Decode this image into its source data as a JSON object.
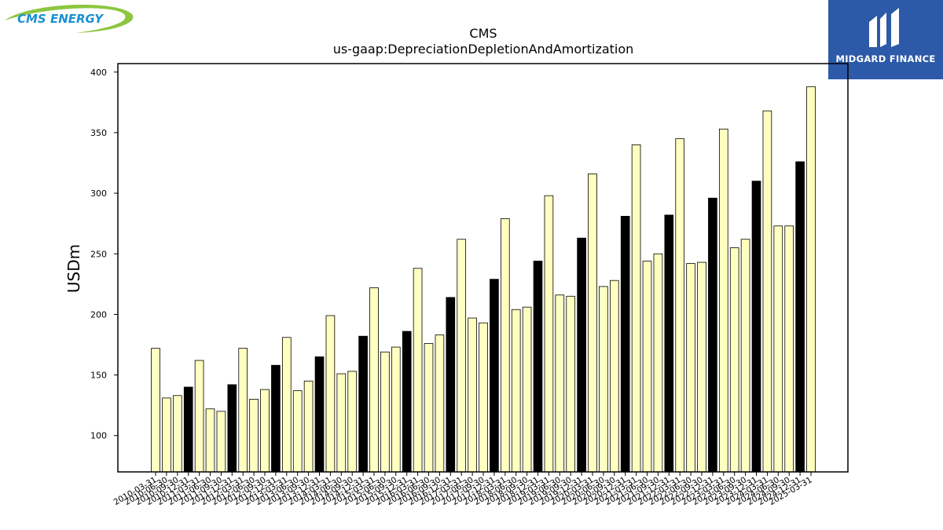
{
  "logos": {
    "left_text": "CMS ENERGY",
    "right_text": "MIDGARD FINANCE"
  },
  "chart_data": {
    "type": "bar",
    "title": "CMS",
    "subtitle": "us-gaap:DepreciationDepletionAndAmortization",
    "ylabel": "USDm",
    "xlabel": "",
    "ylim": [
      70,
      407
    ],
    "yticks": [
      100,
      150,
      200,
      250,
      300,
      350,
      400
    ],
    "grid": false,
    "categories": [
      "2010-03-31",
      "2010-06-30",
      "2010-09-30",
      "2010-12-31",
      "2011-03-31",
      "2011-06-30",
      "2011-09-30",
      "2011-12-31",
      "2012-03-31",
      "2012-06-30",
      "2012-09-30",
      "2012-12-31",
      "2013-03-31",
      "2013-06-30",
      "2013-09-30",
      "2013-12-31",
      "2014-03-31",
      "2014-06-30",
      "2014-09-30",
      "2014-12-31",
      "2015-03-31",
      "2015-06-30",
      "2015-09-30",
      "2015-12-31",
      "2016-03-31",
      "2016-06-30",
      "2016-09-30",
      "2016-12-31",
      "2017-03-31",
      "2017-06-30",
      "2017-09-30",
      "2017-12-31",
      "2018-03-31",
      "2018-06-30",
      "2018-09-30",
      "2018-12-31",
      "2019-03-31",
      "2019-06-30",
      "2019-09-30",
      "2019-12-31",
      "2020-03-31",
      "2020-06-30",
      "2020-09-30",
      "2020-12-31",
      "2021-03-31",
      "2021-06-30",
      "2021-09-30",
      "2021-12-31",
      "2022-03-31",
      "2022-06-30",
      "2022-09-30",
      "2022-12-31",
      "2023-03-31",
      "2023-06-30",
      "2023-09-30",
      "2023-12-31",
      "2024-03-31",
      "2024-06-30",
      "2024-09-30",
      "2024-12-31",
      "2025-03-31"
    ],
    "values": [
      172,
      131,
      133,
      140,
      162,
      122,
      120,
      142,
      172,
      130,
      138,
      158,
      181,
      137,
      145,
      165,
      199,
      151,
      153,
      182,
      222,
      169,
      173,
      186,
      238,
      176,
      183,
      214,
      262,
      197,
      193,
      229,
      279,
      204,
      206,
      244,
      298,
      216,
      215,
      263,
      316,
      223,
      228,
      281,
      340,
      244,
      250,
      282,
      345,
      242,
      243,
      296,
      353,
      255,
      262,
      310,
      368,
      273,
      273,
      326,
      388
    ],
    "highlight_quarter": "12-31",
    "colors": {
      "bar_fill": "#ffffc0",
      "bar_highlight_fill": "#000000",
      "bar_edge": "#000000"
    }
  }
}
